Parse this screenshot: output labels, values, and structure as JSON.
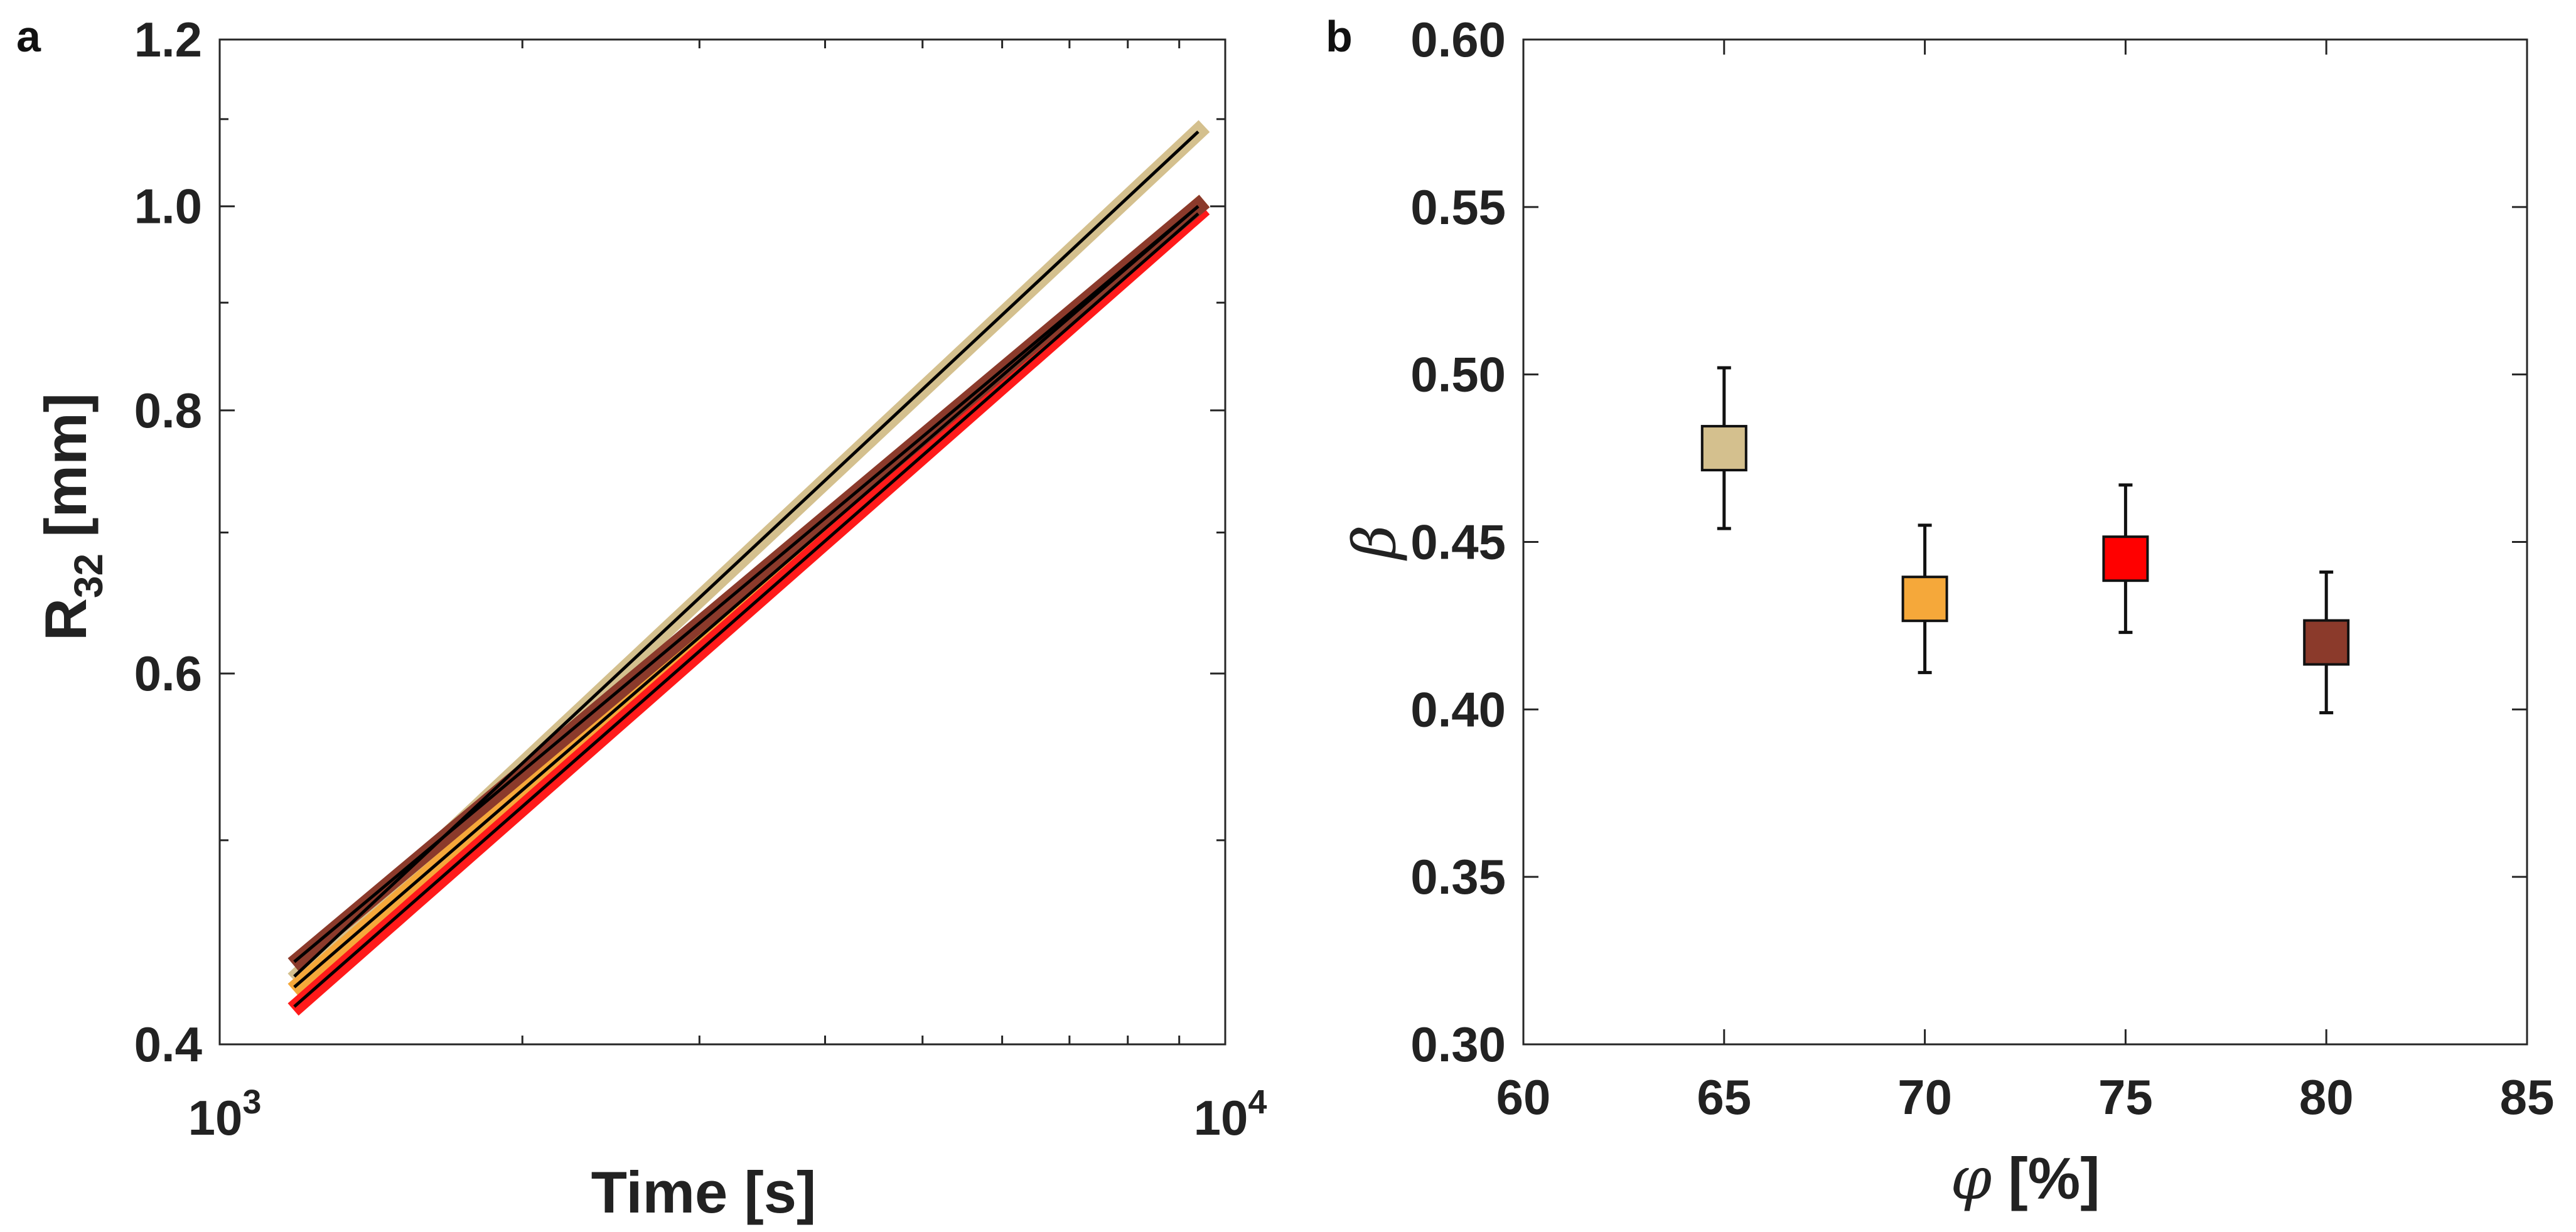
{
  "chart_data": [
    {
      "panel": "a",
      "type": "line",
      "xscale": "log",
      "yscale": "log",
      "xlim": [
        1000,
        10000
      ],
      "ylim": [
        0.4,
        1.2
      ],
      "xticks": [
        1000,
        10000
      ],
      "xtick_labels": [
        {
          "base": "10",
          "exp": "3"
        },
        {
          "base": "10",
          "exp": "4"
        }
      ],
      "yticks": [
        0.4,
        0.6,
        0.8,
        1.0,
        1.2
      ],
      "ytick_labels": [
        "0.4",
        "0.6",
        "0.8",
        "1.0",
        "1.2"
      ],
      "xlabel": "Time [s]",
      "ylabel": {
        "main": "R",
        "sub": "32",
        "unit": " [mm]"
      },
      "fit_color": "#000000",
      "series": [
        {
          "color": "#d4c08e",
          "x": [
            1200,
            9400
          ],
          "y": [
            0.432,
            1.085
          ]
        },
        {
          "color": "#f5a83a",
          "x": [
            1200,
            9400
          ],
          "y": [
            0.427,
            1.0
          ]
        },
        {
          "color": "#ff1a1a",
          "x": [
            1200,
            9400
          ],
          "y": [
            0.418,
            0.992
          ]
        },
        {
          "color": "#8b3a2b",
          "x": [
            1200,
            9400
          ],
          "y": [
            0.439,
            1.0
          ]
        }
      ]
    },
    {
      "panel": "b",
      "type": "scatter",
      "xlim": [
        60,
        85
      ],
      "ylim": [
        0.3,
        0.6
      ],
      "xticks": [
        60,
        65,
        70,
        75,
        80,
        85
      ],
      "xtick_labels": [
        "60",
        "65",
        "70",
        "75",
        "80",
        "85"
      ],
      "yticks": [
        0.3,
        0.35,
        0.4,
        0.45,
        0.5,
        0.55,
        0.6
      ],
      "ytick_labels": [
        "0.30",
        "0.35",
        "0.40",
        "0.45",
        "0.50",
        "0.55",
        "0.60"
      ],
      "xlabel": {
        "symbol": "φ",
        "unit": " [%]"
      },
      "ylabel": "β",
      "points": [
        {
          "x": 65,
          "y": 0.478,
          "err": 0.024,
          "color": "#d4c08e"
        },
        {
          "x": 70,
          "y": 0.433,
          "err": 0.022,
          "color": "#f5a83a"
        },
        {
          "x": 75,
          "y": 0.445,
          "err": 0.022,
          "color": "#ff0000"
        },
        {
          "x": 80,
          "y": 0.42,
          "err": 0.021,
          "color": "#8b3a2b"
        }
      ]
    }
  ]
}
